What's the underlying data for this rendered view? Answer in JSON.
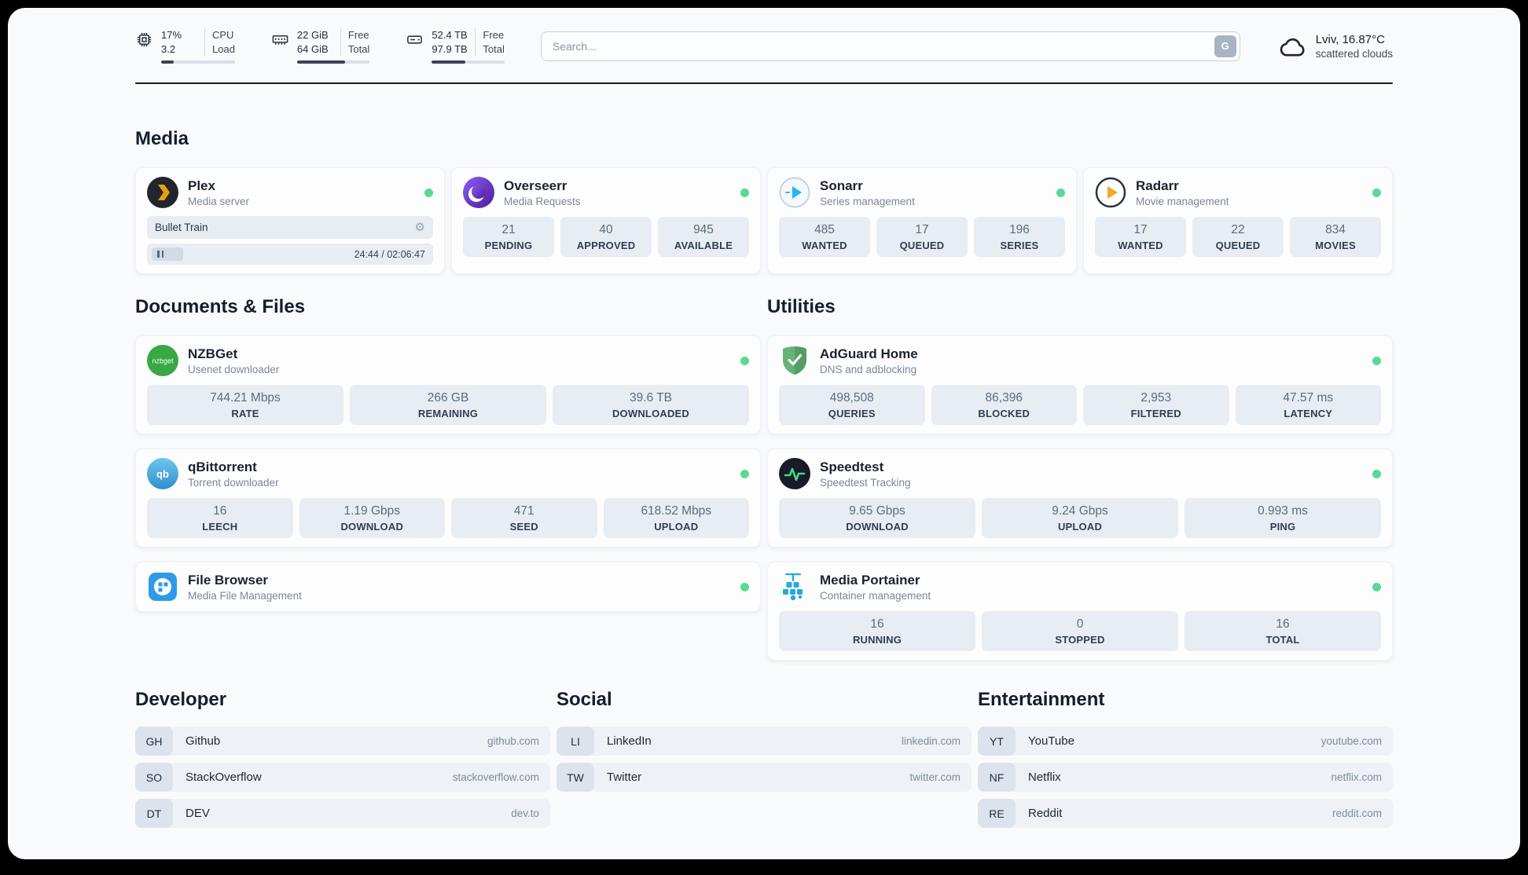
{
  "header": {
    "cpu": {
      "value_top": "17%",
      "value_bottom": "3.2",
      "label_top": "CPU",
      "label_bottom": "Load",
      "bar_percent": 17
    },
    "ram": {
      "value_top": "22 GiB",
      "value_bottom": "64 GiB",
      "label_top": "Free",
      "label_bottom": "Total",
      "bar_percent": 66
    },
    "disk": {
      "value_top": "52.4 TB",
      "value_bottom": "97.9 TB",
      "label_top": "Free",
      "label_bottom": "Total",
      "bar_percent": 46
    },
    "search": {
      "placeholder": "Search...",
      "button_label": "G"
    },
    "weather": {
      "location": "Lviv, 16.87°C",
      "condition": "scattered clouds"
    }
  },
  "sections": {
    "media": {
      "title": "Media",
      "plex": {
        "name": "Plex",
        "subtitle": "Media server",
        "now_playing": "Bullet Train",
        "time": "24:44 / 02:06:47"
      },
      "overseerr": {
        "name": "Overseerr",
        "subtitle": "Media Requests",
        "stats": [
          {
            "value": "21",
            "label": "PENDING"
          },
          {
            "value": "40",
            "label": "APPROVED"
          },
          {
            "value": "945",
            "label": "AVAILABLE"
          }
        ]
      },
      "sonarr": {
        "name": "Sonarr",
        "subtitle": "Series management",
        "stats": [
          {
            "value": "485",
            "label": "WANTED"
          },
          {
            "value": "17",
            "label": "QUEUED"
          },
          {
            "value": "196",
            "label": "SERIES"
          }
        ]
      },
      "radarr": {
        "name": "Radarr",
        "subtitle": "Movie management",
        "stats": [
          {
            "value": "17",
            "label": "WANTED"
          },
          {
            "value": "22",
            "label": "QUEUED"
          },
          {
            "value": "834",
            "label": "MOVIES"
          }
        ]
      }
    },
    "documents": {
      "title": "Documents & Files",
      "nzbget": {
        "name": "NZBGet",
        "subtitle": "Usenet downloader",
        "stats": [
          {
            "value": "744.21 Mbps",
            "label": "RATE"
          },
          {
            "value": "266 GB",
            "label": "REMAINING"
          },
          {
            "value": "39.6 TB",
            "label": "DOWNLOADED"
          }
        ]
      },
      "qbittorrent": {
        "name": "qBittorrent",
        "subtitle": "Torrent downloader",
        "stats": [
          {
            "value": "16",
            "label": "LEECH"
          },
          {
            "value": "1.19 Gbps",
            "label": "DOWNLOAD"
          },
          {
            "value": "471",
            "label": "SEED"
          },
          {
            "value": "618.52 Mbps",
            "label": "UPLOAD"
          }
        ]
      },
      "filebrowser": {
        "name": "File Browser",
        "subtitle": "Media File Management"
      }
    },
    "utilities": {
      "title": "Utilities",
      "adguard": {
        "name": "AdGuard Home",
        "subtitle": "DNS and adblocking",
        "stats": [
          {
            "value": "498,508",
            "label": "QUERIES"
          },
          {
            "value": "86,396",
            "label": "BLOCKED"
          },
          {
            "value": "2,953",
            "label": "FILTERED"
          },
          {
            "value": "47.57 ms",
            "label": "LATENCY"
          }
        ]
      },
      "speedtest": {
        "name": "Speedtest",
        "subtitle": "Speedtest Tracking",
        "stats": [
          {
            "value": "9.65 Gbps",
            "label": "DOWNLOAD"
          },
          {
            "value": "9.24 Gbps",
            "label": "UPLOAD"
          },
          {
            "value": "0.993 ms",
            "label": "PING"
          }
        ]
      },
      "portainer": {
        "name": "Media Portainer",
        "subtitle": "Container management",
        "stats": [
          {
            "value": "16",
            "label": "RUNNING"
          },
          {
            "value": "0",
            "label": "STOPPED"
          },
          {
            "value": "16",
            "label": "TOTAL"
          }
        ]
      }
    }
  },
  "bookmarks": {
    "developer": {
      "title": "Developer",
      "items": [
        {
          "abbr": "GH",
          "name": "Github",
          "url": "github.com"
        },
        {
          "abbr": "SO",
          "name": "StackOverflow",
          "url": "stackoverflow.com"
        },
        {
          "abbr": "DT",
          "name": "DEV",
          "url": "dev.to"
        }
      ]
    },
    "social": {
      "title": "Social",
      "items": [
        {
          "abbr": "LI",
          "name": "LinkedIn",
          "url": "linkedin.com"
        },
        {
          "abbr": "TW",
          "name": "Twitter",
          "url": "twitter.com"
        }
      ]
    },
    "entertainment": {
      "title": "Entertainment",
      "items": [
        {
          "abbr": "YT",
          "name": "YouTube",
          "url": "youtube.com"
        },
        {
          "abbr": "NF",
          "name": "Netflix",
          "url": "netflix.com"
        },
        {
          "abbr": "RE",
          "name": "Reddit",
          "url": "reddit.com"
        }
      ]
    }
  }
}
